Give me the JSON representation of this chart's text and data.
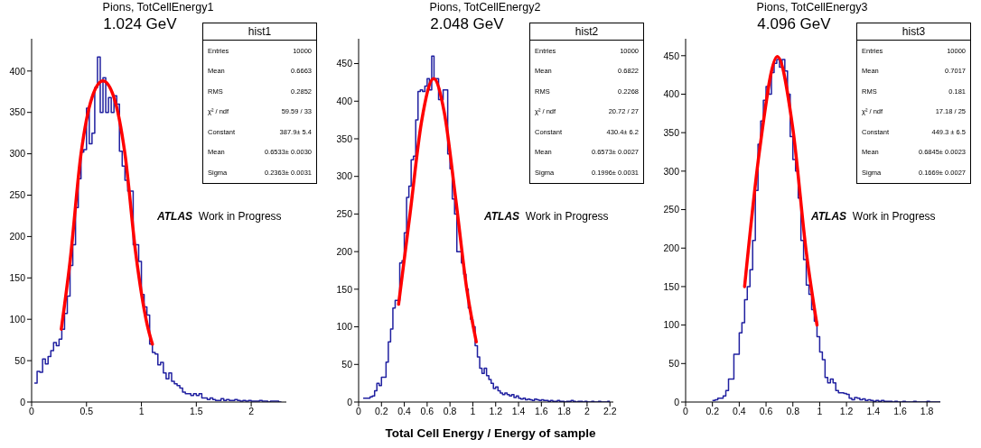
{
  "chart_data": [
    {
      "type": "histogram",
      "title": "Pions, TotCellEnergy1",
      "subtitle": "1.024 GeV",
      "color": "#2020a0",
      "bins": [
        0.025,
        0.05,
        0.075,
        0.1,
        0.125,
        0.15,
        0.175,
        0.2,
        0.225,
        0.25,
        0.275,
        0.3,
        0.325,
        0.35,
        0.375,
        0.4,
        0.425,
        0.45,
        0.475,
        0.5,
        0.525,
        0.55,
        0.575,
        0.6,
        0.625,
        0.65,
        0.675,
        0.7,
        0.725,
        0.75,
        0.775,
        0.8,
        0.825,
        0.85,
        0.875,
        0.9,
        0.925,
        0.95,
        0.975,
        1,
        1.025,
        1.05,
        1.075,
        1.1,
        1.125,
        1.15,
        1.175,
        1.2,
        1.225,
        1.25,
        1.275,
        1.3,
        1.325,
        1.35,
        1.375,
        1.4,
        1.425,
        1.45,
        1.475,
        1.5,
        1.525,
        1.55,
        1.575,
        1.6,
        1.625,
        1.65,
        1.675,
        1.7,
        1.725,
        1.75,
        1.775,
        1.8,
        1.825,
        1.85,
        1.875,
        1.9,
        1.925,
        1.95,
        1.975,
        2,
        2.025,
        2.05,
        2.075,
        2.1,
        2.125,
        2.15,
        2.175,
        2.2,
        2.225,
        2.25,
        2.275
      ],
      "values": [
        23,
        37,
        36,
        52,
        46,
        55,
        62,
        72,
        68,
        76,
        88,
        107,
        128,
        165,
        190,
        235,
        270,
        302,
        305,
        355,
        312,
        325,
        380,
        417,
        350,
        392,
        350,
        368,
        350,
        370,
        360,
        303,
        285,
        268,
        255,
        255,
        190,
        190,
        170,
        130,
        115,
        105,
        70,
        60,
        58,
        45,
        48,
        35,
        28,
        35,
        25,
        22,
        20,
        17,
        12,
        10,
        10,
        8,
        10,
        8,
        10,
        5,
        5,
        3,
        5,
        3,
        2,
        2,
        4,
        2,
        3,
        2,
        2,
        3,
        2,
        1,
        2,
        1,
        2,
        1,
        1,
        1,
        2,
        1,
        1,
        0,
        1,
        1,
        1,
        0
      ],
      "series": [
        {
          "type": "line",
          "color": "#ff0000",
          "x": [
            0.27,
            0.35,
            0.45,
            0.55,
            0.65,
            0.75,
            0.85,
            0.95,
            1.05,
            1.1
          ],
          "values": [
            88,
            170,
            300,
            368,
            388,
            368,
            300,
            178,
            95,
            70
          ]
        }
      ],
      "xlim": [
        0,
        2.32
      ],
      "xticks": [
        0,
        0.5,
        1,
        1.5,
        2
      ],
      "ylim": [
        0,
        439
      ],
      "yticks": [
        0,
        50,
        100,
        150,
        200,
        250,
        300,
        350,
        400
      ],
      "annotations": [
        "hist1",
        "Entries",
        "10000",
        "Mean",
        "0.6663",
        "RMS",
        "0.2852",
        "χ² / ndf",
        "59.59 / 33",
        "Constant",
        "387.9± 5.4",
        "Mean",
        "0.6533± 0.0030",
        "Sigma",
        "0.2363± 0.0031",
        "ATLAS",
        "Work in Progress"
      ]
    },
    {
      "type": "histogram",
      "title": "Pions, TotCellEnergy2",
      "subtitle": "2.048 GeV",
      "xlabel": "Total Cell Energy / Energy of sample",
      "color": "#2020a0",
      "bins": [
        0.04,
        0.06,
        0.08,
        0.1,
        0.12,
        0.14,
        0.16,
        0.18,
        0.2,
        0.22,
        0.24,
        0.26,
        0.28,
        0.3,
        0.32,
        0.34,
        0.36,
        0.38,
        0.4,
        0.42,
        0.44,
        0.46,
        0.48,
        0.5,
        0.52,
        0.54,
        0.56,
        0.58,
        0.6,
        0.62,
        0.64,
        0.66,
        0.68,
        0.7,
        0.72,
        0.74,
        0.76,
        0.78,
        0.8,
        0.82,
        0.84,
        0.86,
        0.88,
        0.9,
        0.92,
        0.94,
        0.96,
        0.98,
        1,
        1.02,
        1.04,
        1.06,
        1.08,
        1.1,
        1.12,
        1.14,
        1.16,
        1.18,
        1.2,
        1.22,
        1.24,
        1.26,
        1.28,
        1.3,
        1.32,
        1.34,
        1.36,
        1.38,
        1.4,
        1.42,
        1.44,
        1.46,
        1.48,
        1.5,
        1.52,
        1.54,
        1.56,
        1.58,
        1.6,
        1.62,
        1.64,
        1.66,
        1.68,
        1.7,
        1.72,
        1.74,
        1.76,
        1.78,
        1.8,
        1.82,
        1.84,
        1.86,
        1.88,
        1.9,
        1.92,
        1.94,
        1.96,
        1.98,
        2,
        2.02,
        2.04,
        2.06,
        2.08,
        2.1,
        2.12,
        2.14,
        2.16,
        2.18,
        2.2
      ],
      "values": [
        5,
        5,
        5,
        7,
        8,
        15,
        25,
        22,
        33,
        33,
        53,
        80,
        97,
        125,
        135,
        135,
        185,
        188,
        225,
        272,
        287,
        322,
        327,
        375,
        413,
        415,
        413,
        420,
        430,
        415,
        460,
        430,
        430,
        402,
        402,
        415,
        415,
        330,
        310,
        270,
        250,
        200,
        200,
        185,
        170,
        150,
        125,
        110,
        100,
        75,
        60,
        45,
        38,
        45,
        35,
        30,
        25,
        18,
        20,
        15,
        12,
        10,
        12,
        10,
        8,
        10,
        6,
        8,
        5,
        4,
        5,
        3,
        4,
        3,
        2,
        4,
        3,
        2,
        3,
        2,
        2,
        1,
        2,
        1,
        1,
        2,
        1,
        1,
        0,
        1,
        1,
        2,
        1,
        0,
        1,
        1,
        0,
        1,
        0,
        0,
        1,
        0,
        0,
        1,
        0,
        0,
        0,
        1
      ],
      "series": [
        {
          "type": "line",
          "color": "#ff0000",
          "x": [
            0.35,
            0.45,
            0.55,
            0.657,
            0.75,
            0.85,
            0.95,
            1.03
          ],
          "values": [
            130,
            250,
            372,
            430,
            385,
            270,
            147,
            80
          ]
        }
      ],
      "xlim": [
        0,
        2.23
      ],
      "xticks": [
        0,
        0.2,
        0.4,
        0.6,
        0.8,
        1,
        1.2,
        1.4,
        1.6,
        1.8,
        2,
        2.2
      ],
      "ylim": [
        0,
        483
      ],
      "yticks": [
        0,
        50,
        100,
        150,
        200,
        250,
        300,
        350,
        400,
        450
      ],
      "annotations": [
        "hist2",
        "Entries",
        "10000",
        "Mean",
        "0.6822",
        "RMS",
        "0.2268",
        "χ² / ndf",
        "20.72 / 27",
        "Constant",
        "430.4± 6.2",
        "Mean",
        "0.6573± 0.0027",
        "Sigma",
        "0.1996± 0.0031",
        "ATLAS",
        "Work in Progress"
      ]
    },
    {
      "type": "histogram",
      "title": "Pions, TotCellEnergy3",
      "subtitle": "4.096 GeV",
      "color": "#2020a0",
      "bins": [
        0.2,
        0.22,
        0.24,
        0.26,
        0.28,
        0.3,
        0.32,
        0.34,
        0.36,
        0.38,
        0.4,
        0.42,
        0.44,
        0.46,
        0.48,
        0.5,
        0.52,
        0.54,
        0.56,
        0.58,
        0.6,
        0.62,
        0.64,
        0.66,
        0.68,
        0.7,
        0.72,
        0.74,
        0.76,
        0.78,
        0.8,
        0.82,
        0.84,
        0.86,
        0.88,
        0.9,
        0.92,
        0.94,
        0.96,
        0.98,
        1,
        1.02,
        1.04,
        1.06,
        1.08,
        1.1,
        1.12,
        1.14,
        1.16,
        1.18,
        1.2,
        1.22,
        1.24,
        1.26,
        1.28,
        1.3,
        1.32,
        1.34,
        1.36,
        1.38,
        1.4,
        1.42,
        1.44,
        1.46,
        1.48,
        1.5,
        1.52,
        1.54,
        1.56,
        1.58,
        1.6,
        1.62,
        1.64,
        1.66,
        1.68,
        1.7,
        1.72,
        1.74,
        1.76,
        1.78,
        1.8,
        1.82,
        1.84,
        1.86,
        1.88,
        1.9
      ],
      "values": [
        2,
        3,
        5,
        5,
        8,
        15,
        30,
        30,
        62,
        62,
        90,
        103,
        133,
        150,
        172,
        210,
        275,
        335,
        365,
        392,
        410,
        400,
        428,
        440,
        445,
        435,
        445,
        430,
        400,
        345,
        315,
        300,
        265,
        210,
        185,
        152,
        140,
        120,
        105,
        85,
        65,
        55,
        32,
        25,
        30,
        25,
        15,
        12,
        12,
        11,
        10,
        5,
        3,
        6,
        5,
        3,
        4,
        2,
        3,
        2,
        1,
        2,
        1,
        2,
        1,
        1,
        1,
        0,
        1,
        0,
        0,
        1,
        0,
        0,
        0,
        1,
        0,
        0,
        0,
        0,
        1,
        0,
        0,
        0,
        0
      ],
      "series": [
        {
          "type": "line",
          "color": "#ff0000",
          "x": [
            0.44,
            0.55,
            0.6845,
            0.8,
            0.9,
            0.98
          ],
          "values": [
            150,
            325,
            449,
            355,
            195,
            100
          ]
        }
      ],
      "xlim": [
        0,
        1.9
      ],
      "xticks": [
        0,
        0.2,
        0.4,
        0.6,
        0.8,
        1,
        1.2,
        1.4,
        1.6,
        1.8
      ],
      "ylim": [
        0,
        472
      ],
      "yticks": [
        0,
        50,
        100,
        150,
        200,
        250,
        300,
        350,
        400,
        450
      ],
      "annotations": [
        "hist3",
        "Entries",
        "10000",
        "Mean",
        "0.7017",
        "RMS",
        "0.181",
        "χ² / ndf",
        "17.18 / 25",
        "Constant",
        "449.3 ± 6.5",
        "Mean",
        "0.6845± 0.0023",
        "Sigma",
        "0.1669± 0.0027",
        "ATLAS",
        "Work in Progress"
      ]
    }
  ]
}
